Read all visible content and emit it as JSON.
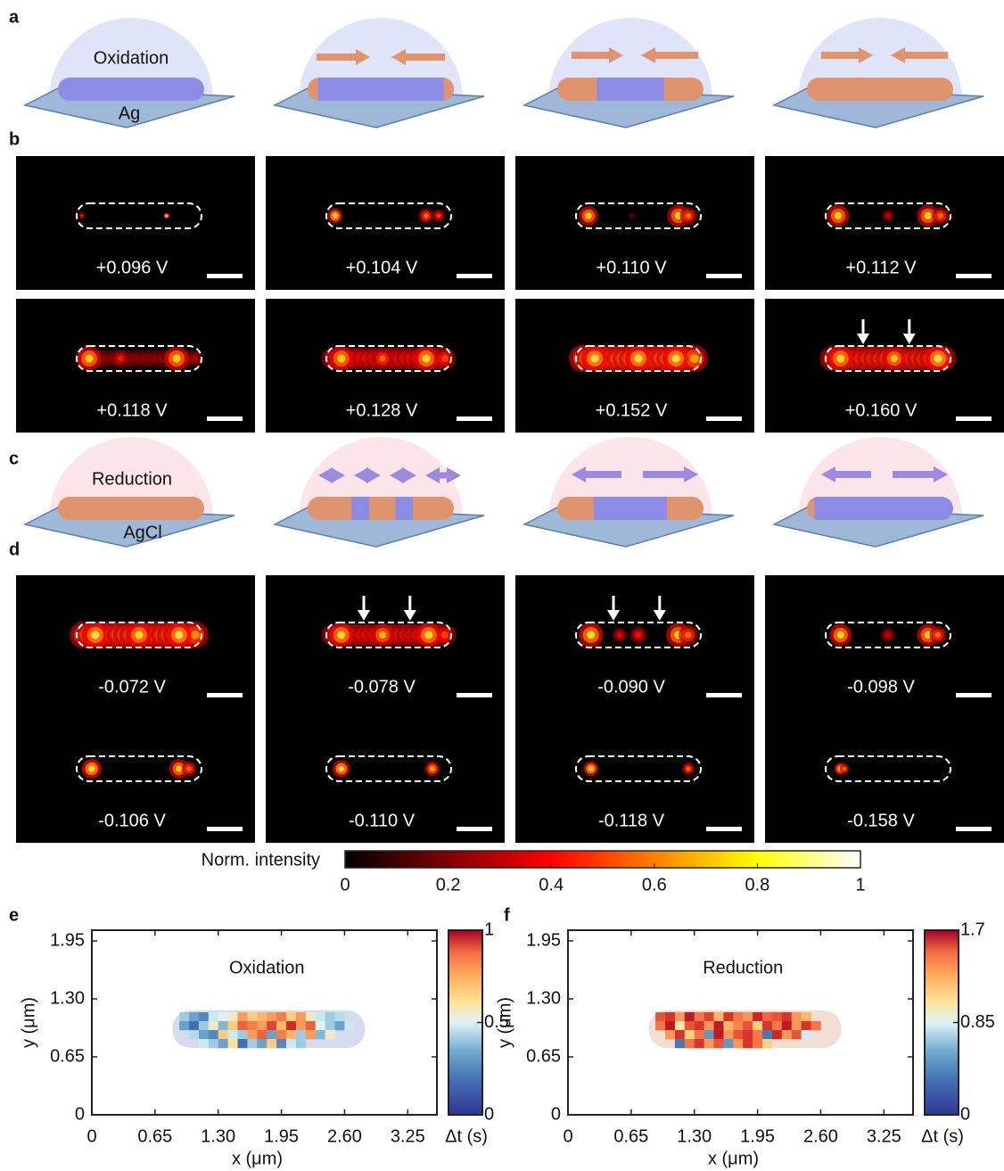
{
  "panel_labels": [
    "a",
    "b",
    "c",
    "d",
    "e",
    "f"
  ],
  "panel_a": {
    "labels": [
      "Oxidation",
      "Ag"
    ]
  },
  "panel_b": {
    "voltages": [
      "+0.096 V",
      "+0.104 V",
      "+0.110 V",
      "+0.112 V",
      "+0.118 V",
      "+0.128 V",
      "+0.152 V",
      "+0.160 V"
    ]
  },
  "panel_c": {
    "labels": [
      "Reduction",
      "AgCl"
    ]
  },
  "panel_d": {
    "voltages": [
      "-0.072 V",
      "-0.078 V",
      "-0.090 V",
      "-0.098 V",
      "-0.106 V",
      "-0.110 V",
      "-0.118 V",
      "-0.158 V"
    ]
  },
  "colorbar": {
    "label": "Norm. intensity",
    "lim": [
      0,
      1
    ],
    "ticks": [
      0,
      0.2,
      0.4,
      0.6,
      0.8,
      1
    ]
  },
  "chart_data": [
    {
      "type": "heatmap",
      "title": "Oxidation",
      "xlabel": "x (μm)",
      "ylabel": "y (μm)",
      "colorbar_label": "Δt (s)",
      "xlim": [
        0,
        3.55
      ],
      "ylim": [
        0,
        2.07
      ],
      "xticks": [
        0,
        0.65,
        {
          "value": 1.3,
          "label": "1.30"
        },
        1.95,
        {
          "value": 2.6,
          "label": "2.60"
        },
        3.25
      ],
      "yticks": [
        0,
        0.65,
        {
          "value": 1.3,
          "label": "1.30"
        },
        1.95
      ],
      "clim": [
        0,
        1
      ],
      "cticks": [
        0,
        0.5,
        1
      ],
      "x": [
        0.95,
        1.05,
        1.15,
        1.25,
        1.35,
        1.45,
        1.55,
        1.65,
        1.75,
        1.85,
        1.95,
        2.05,
        2.15,
        2.25,
        2.35,
        2.45,
        2.55,
        2.65
      ],
      "y": [
        1.1,
        1.0,
        0.9,
        0.8
      ],
      "values": [
        [
          0.3,
          0.2,
          0.15,
          0.4,
          0.45,
          0.5,
          0.7,
          0.6,
          0.65,
          0.7,
          0.75,
          0.6,
          0.7,
          0.5,
          0.4,
          0.3,
          0.35,
          null
        ],
        [
          0.2,
          0.1,
          0.3,
          0.5,
          0.25,
          0.6,
          0.8,
          0.75,
          0.7,
          0.85,
          0.65,
          0.9,
          0.7,
          0.8,
          0.45,
          0.3,
          0.2,
          0.4
        ],
        [
          null,
          0.35,
          0.2,
          0.15,
          0.6,
          0.4,
          0.3,
          0.7,
          0.8,
          0.2,
          0.75,
          0.65,
          0.3,
          0.7,
          0.25,
          0.5,
          null,
          null
        ],
        [
          null,
          null,
          0.4,
          0.3,
          0.2,
          0.55,
          0.1,
          0.3,
          0.2,
          0.6,
          0.15,
          0.4,
          0.3,
          null,
          null,
          null,
          null,
          null
        ]
      ]
    },
    {
      "type": "heatmap",
      "title": "Reduction",
      "xlabel": "x (μm)",
      "ylabel": "y (μm)",
      "colorbar_label": "Δt (s)",
      "xlim": [
        0,
        3.55
      ],
      "ylim": [
        0,
        2.07
      ],
      "xticks": [
        0,
        0.65,
        {
          "value": 1.3,
          "label": "1.30"
        },
        1.95,
        {
          "value": 2.6,
          "label": "2.60"
        },
        3.25
      ],
      "yticks": [
        0,
        0.65,
        {
          "value": 1.3,
          "label": "1.30"
        },
        1.95
      ],
      "clim": [
        0,
        1.7
      ],
      "cticks": [
        0,
        0.85,
        1.7
      ],
      "x": [
        0.95,
        1.05,
        1.15,
        1.25,
        1.35,
        1.45,
        1.55,
        1.65,
        1.75,
        1.85,
        1.95,
        2.05,
        2.15,
        2.25,
        2.35,
        2.45,
        2.55,
        2.65
      ],
      "y": [
        1.1,
        1.0,
        0.9,
        0.8
      ],
      "values": [
        [
          1.4,
          1.5,
          1.2,
          1.6,
          1.3,
          1.45,
          1.1,
          1.5,
          1.3,
          1.2,
          1.55,
          1.35,
          1.4,
          1.5,
          1.2,
          1.1,
          null,
          null
        ],
        [
          1.3,
          1.6,
          0.9,
          1.4,
          1.5,
          1.2,
          1.6,
          1.1,
          1.25,
          1.4,
          1.0,
          1.5,
          1.3,
          1.6,
          1.2,
          1.5,
          1.3,
          null
        ],
        [
          null,
          1.2,
          1.5,
          1.0,
          1.3,
          0.3,
          1.6,
          1.2,
          1.4,
          1.5,
          1.3,
          0.2,
          1.55,
          1.2,
          1.4,
          0.7,
          null,
          null
        ],
        [
          null,
          null,
          0.2,
          1.3,
          1.5,
          1.2,
          1.4,
          0.3,
          1.2,
          1.5,
          1.3,
          1.0,
          null,
          null,
          null,
          null,
          null,
          null
        ]
      ]
    }
  ]
}
